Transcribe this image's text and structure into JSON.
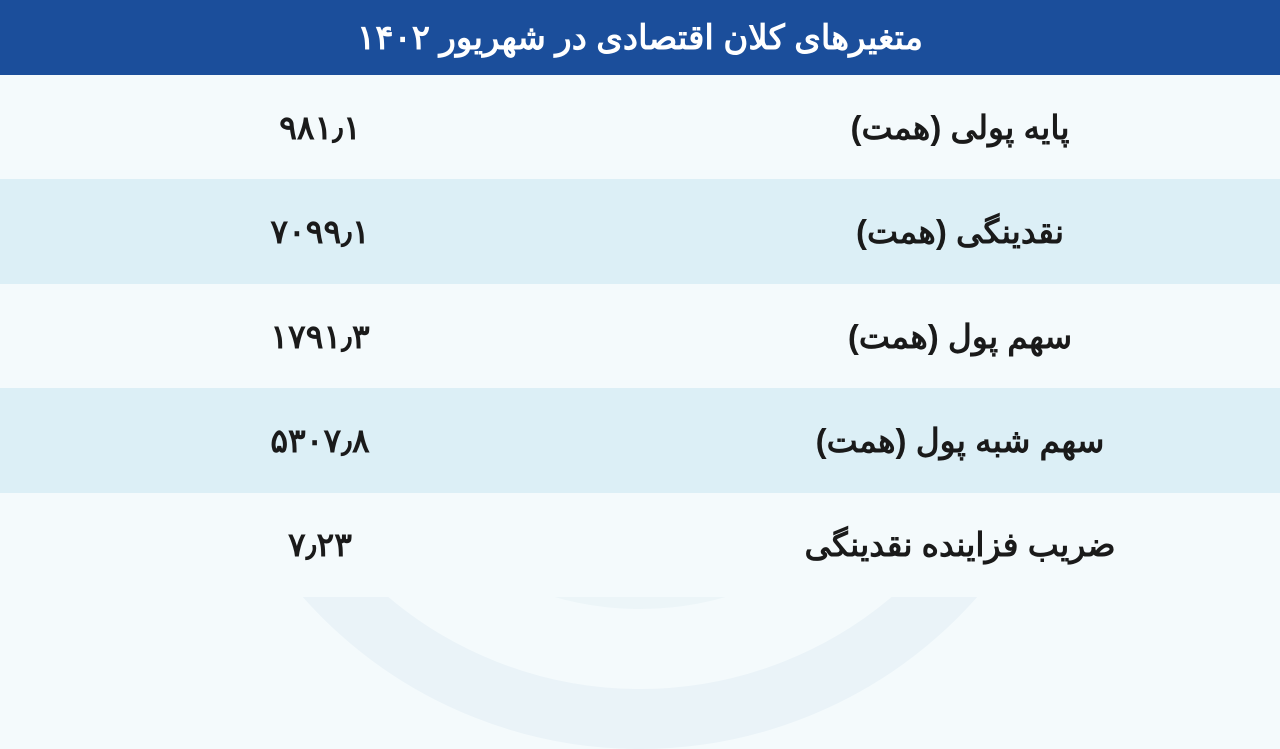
{
  "table": {
    "type": "table",
    "title": "متغیرهای کلان اقتصادی در شهریور ۱۴۰۲",
    "header_bg": "#1b4e9b",
    "header_color": "#ffffff",
    "header_fontsize": 34,
    "row_fontsize": 33,
    "text_color": "#1a1a1a",
    "row_bg_odd": "#f4fafc",
    "row_bg_even": "#dceff6",
    "background_color": "#f4fafc",
    "columns": [
      "label",
      "value"
    ],
    "rows": [
      {
        "label": "پایه پولی (همت)",
        "value": "۹۸۱٫۱"
      },
      {
        "label": "نقدینگی (همت)",
        "value": "۷۰۹۹٫۱"
      },
      {
        "label": "سهم پول (همت)",
        "value": "۱۷۹۱٫۳"
      },
      {
        "label": "سهم شبه پول (همت)",
        "value": "۵۳۰۷٫۸"
      },
      {
        "label": "ضریب فزاینده نقدینگی",
        "value": "۷٫۲۳"
      }
    ]
  }
}
